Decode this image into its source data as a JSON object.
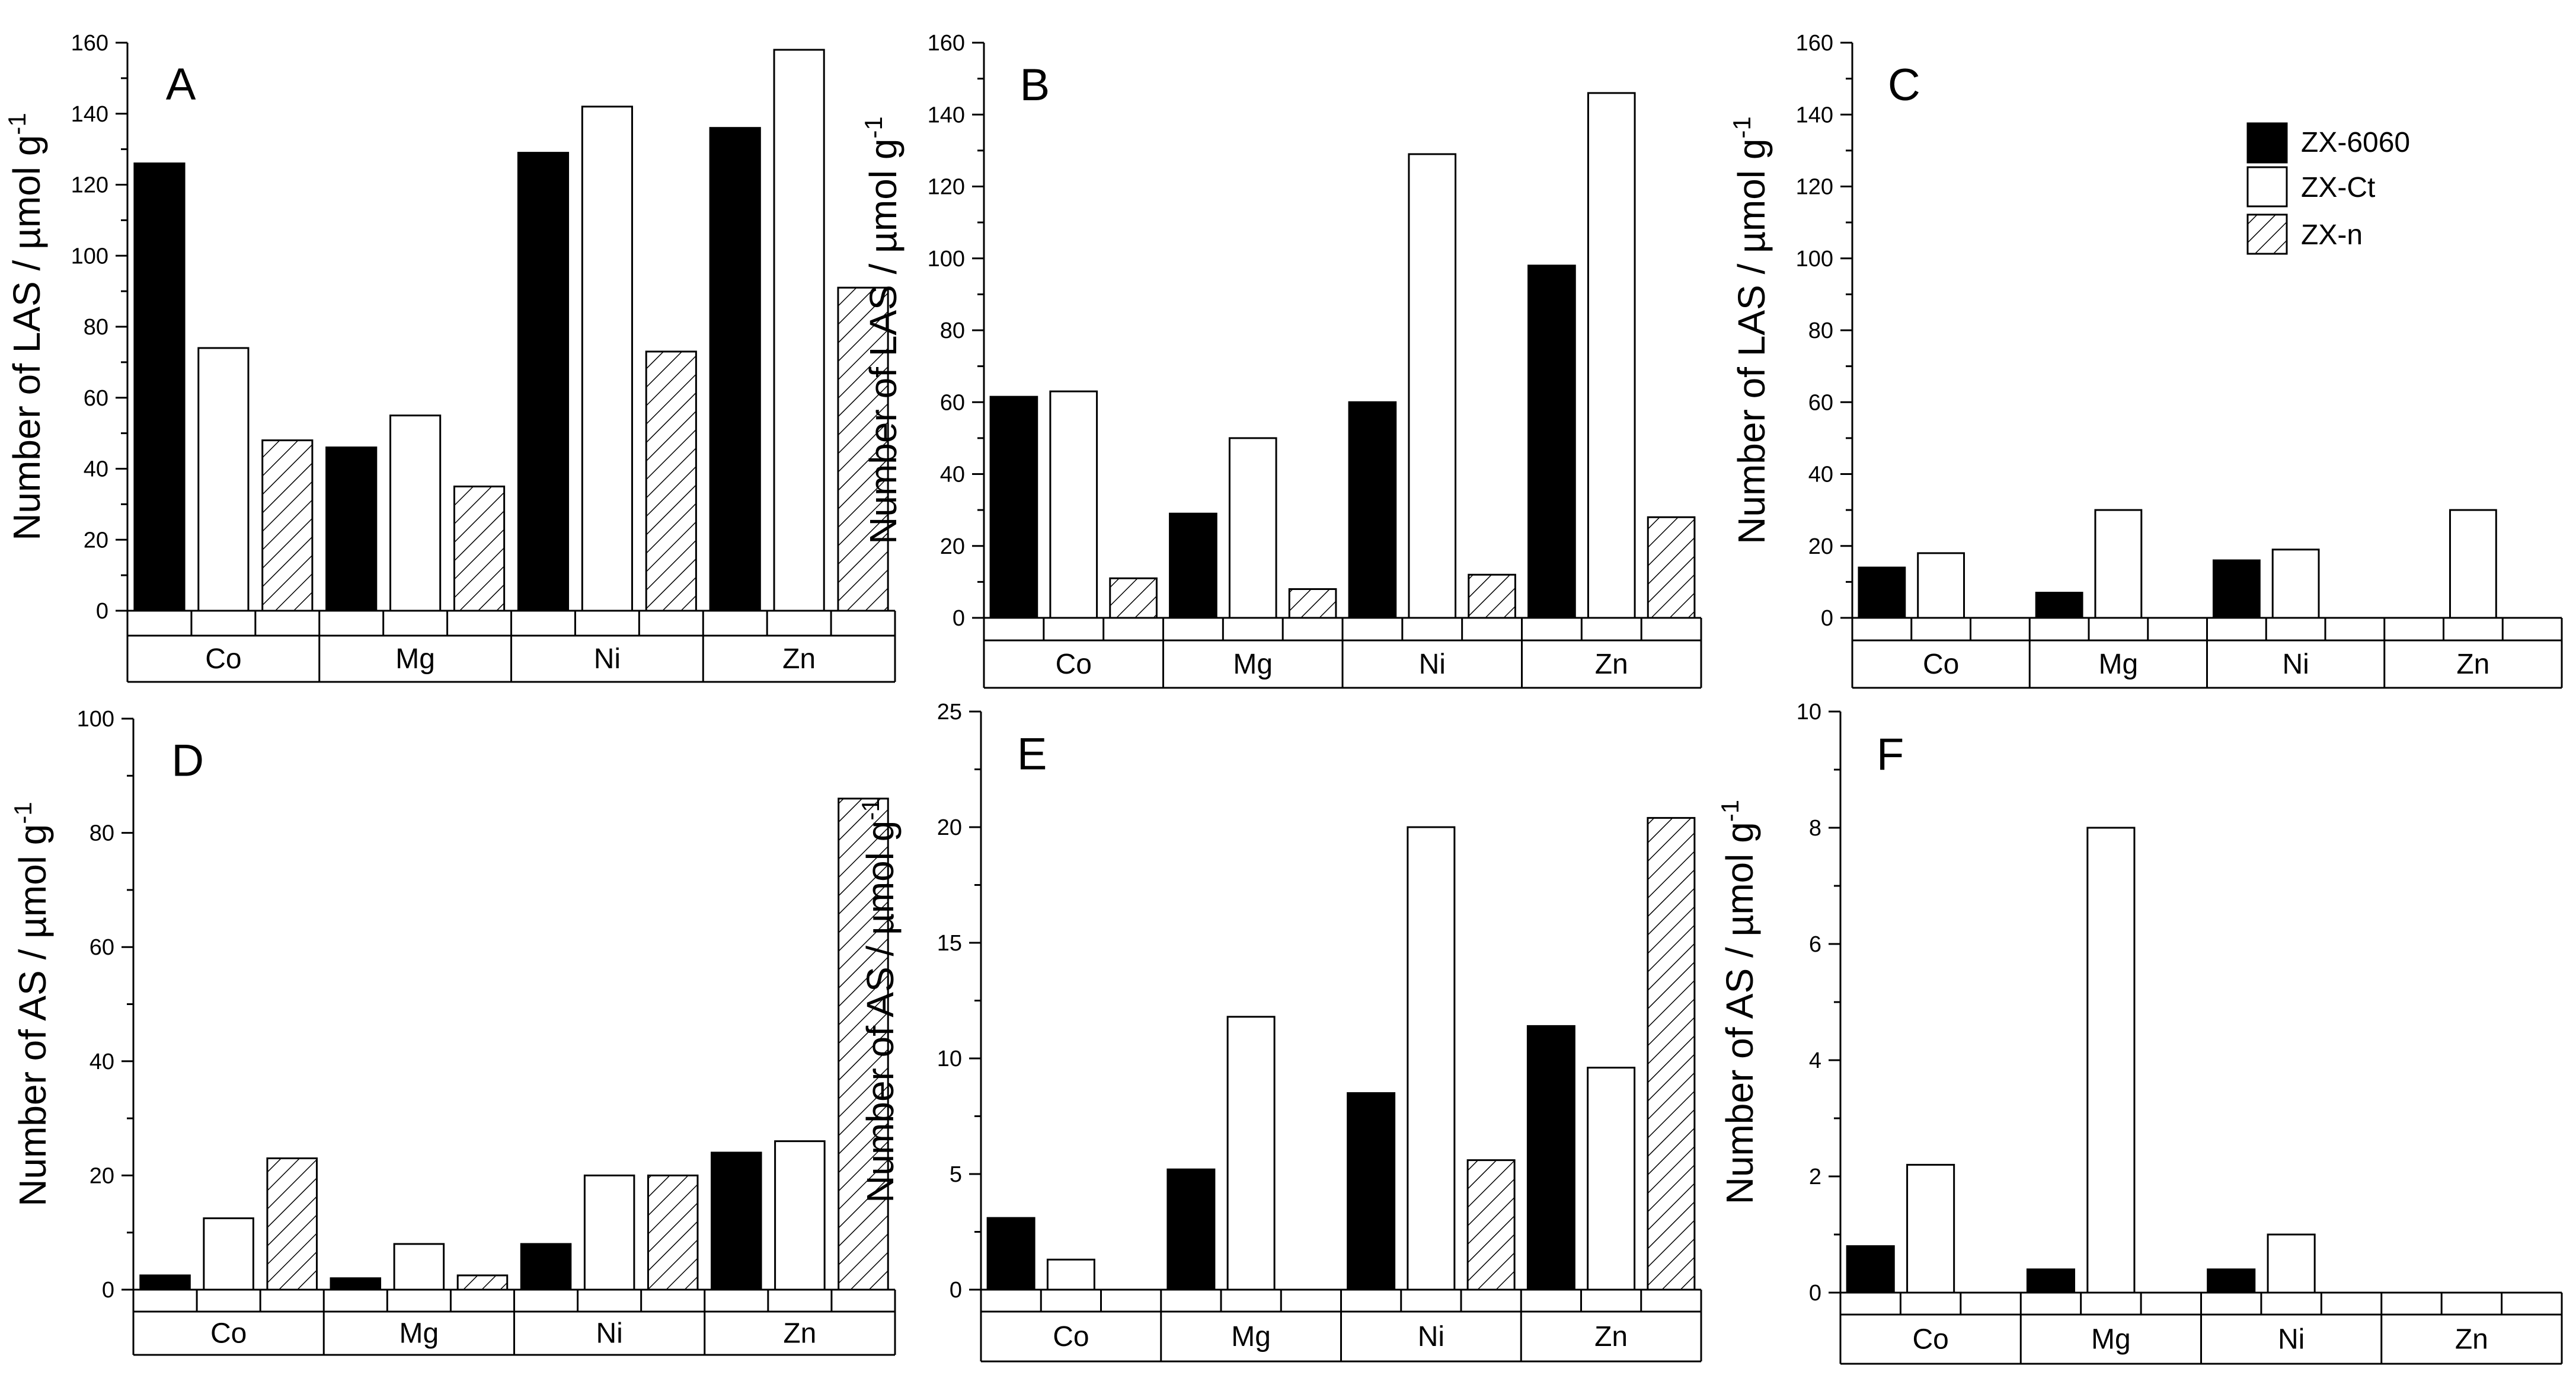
{
  "chart_data": [
    {
      "type": "bar",
      "panel_label": "A",
      "categories": [
        "Co",
        "Mg",
        "Ni",
        "Zn"
      ],
      "ylabel": "Number of LAS / µmol g",
      "ylabel_superscript": "-1",
      "ylim": [
        0,
        160
      ],
      "yticks": [
        0,
        20,
        40,
        60,
        80,
        100,
        120,
        140,
        160
      ],
      "series": [
        {
          "key": "s1",
          "values": [
            126,
            46,
            129,
            136
          ]
        },
        {
          "key": "s2",
          "values": [
            74,
            55,
            142,
            158
          ]
        },
        {
          "key": "s3",
          "values": [
            48,
            35,
            73,
            91
          ]
        }
      ]
    },
    {
      "type": "bar",
      "panel_label": "B",
      "categories": [
        "Co",
        "Mg",
        "Ni",
        "Zn"
      ],
      "ylabel": "Number of LAS / µmol g",
      "ylabel_superscript": "-1",
      "ylim": [
        0,
        160
      ],
      "yticks": [
        0,
        20,
        40,
        60,
        80,
        100,
        120,
        140,
        160
      ],
      "series": [
        {
          "key": "s1",
          "values": [
            61.5,
            29,
            60,
            98
          ]
        },
        {
          "key": "s2",
          "values": [
            63,
            50,
            129,
            146
          ]
        },
        {
          "key": "s3",
          "values": [
            11,
            8,
            12,
            28
          ]
        }
      ]
    },
    {
      "type": "bar",
      "panel_label": "C",
      "categories": [
        "Co",
        "Mg",
        "Ni",
        "Zn"
      ],
      "ylabel": "Number of LAS / µmol g",
      "ylabel_superscript": "-1",
      "ylim": [
        0,
        160
      ],
      "yticks": [
        0,
        20,
        40,
        60,
        80,
        100,
        120,
        140,
        160
      ],
      "series": [
        {
          "key": "s1",
          "values": [
            14,
            7,
            16,
            0
          ]
        },
        {
          "key": "s2",
          "values": [
            18,
            30,
            19,
            30
          ]
        },
        {
          "key": "s3",
          "values": [
            0,
            0,
            0,
            0
          ]
        }
      ]
    },
    {
      "type": "bar",
      "panel_label": "D",
      "categories": [
        "Co",
        "Mg",
        "Ni",
        "Zn"
      ],
      "ylabel": "Number of AS / µmol g",
      "ylabel_superscript": "-1",
      "ylim": [
        0,
        100
      ],
      "yticks": [
        0,
        20,
        40,
        60,
        80,
        100
      ],
      "series": [
        {
          "key": "s1",
          "values": [
            2.5,
            2,
            8,
            24
          ]
        },
        {
          "key": "s2",
          "values": [
            12.5,
            8,
            20,
            26
          ]
        },
        {
          "key": "s3",
          "values": [
            23,
            2.5,
            20,
            86
          ]
        }
      ]
    },
    {
      "type": "bar",
      "panel_label": "E",
      "categories": [
        "Co",
        "Mg",
        "Ni",
        "Zn"
      ],
      "ylabel": "Number of AS / µmol g",
      "ylabel_superscript": "-1",
      "ylim": [
        0,
        25
      ],
      "yticks": [
        0,
        5,
        10,
        15,
        20,
        25
      ],
      "series": [
        {
          "key": "s1",
          "values": [
            3.1,
            5.2,
            8.5,
            11.4
          ]
        },
        {
          "key": "s2",
          "values": [
            1.3,
            11.8,
            20,
            9.6
          ]
        },
        {
          "key": "s3",
          "values": [
            0,
            0,
            5.6,
            20.4
          ]
        }
      ]
    },
    {
      "type": "bar",
      "panel_label": "F",
      "categories": [
        "Co",
        "Mg",
        "Ni",
        "Zn"
      ],
      "ylabel": "Number of AS / µmol g",
      "ylabel_superscript": "-1",
      "ylim": [
        0,
        10
      ],
      "yticks": [
        0,
        2,
        4,
        6,
        8,
        10
      ],
      "series": [
        {
          "key": "s1",
          "values": [
            0.8,
            0.4,
            0.4,
            0
          ]
        },
        {
          "key": "s2",
          "values": [
            2.2,
            8,
            1,
            0
          ]
        },
        {
          "key": "s3",
          "values": [
            0,
            0,
            0,
            0
          ]
        }
      ]
    }
  ],
  "legend": {
    "placement": "top-right of panel C",
    "entries": [
      {
        "key": "s1",
        "label": "ZX-6060",
        "fill": "solid-black"
      },
      {
        "key": "s2",
        "label": "ZX-Ct",
        "fill": "white"
      },
      {
        "key": "s3",
        "label": "ZX-n",
        "fill": "diagonal-hatch"
      }
    ]
  },
  "colors": {
    "solid": "#000000",
    "open": "#ffffff",
    "line": "#000000"
  }
}
